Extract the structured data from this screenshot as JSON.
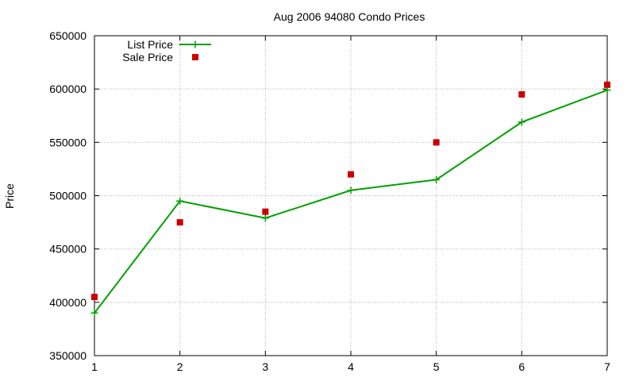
{
  "chart_data": {
    "type": "line",
    "title": "Aug 2006 94080 Condo Prices",
    "xlabel": "",
    "ylabel": "Price",
    "x": [
      1,
      2,
      3,
      4,
      5,
      6,
      7
    ],
    "xlim": [
      1,
      7
    ],
    "ylim": [
      350000,
      650000
    ],
    "xticks": [
      "1",
      "2",
      "3",
      "4",
      "5",
      "6",
      "7"
    ],
    "yticks": [
      "350000",
      "400000",
      "450000",
      "500000",
      "550000",
      "600000",
      "650000"
    ],
    "grid": true,
    "legend_position": "top-left",
    "series": [
      {
        "name": "List Price",
        "style": "line+points",
        "marker": "plus",
        "color": "#00a000",
        "values": [
          390000,
          495000,
          479000,
          505000,
          515000,
          569000,
          599000
        ]
      },
      {
        "name": "Sale Price",
        "style": "points",
        "marker": "square",
        "color": "#cc0000",
        "values": [
          405000,
          475000,
          485000,
          520000,
          550000,
          595000,
          604000
        ]
      }
    ]
  }
}
